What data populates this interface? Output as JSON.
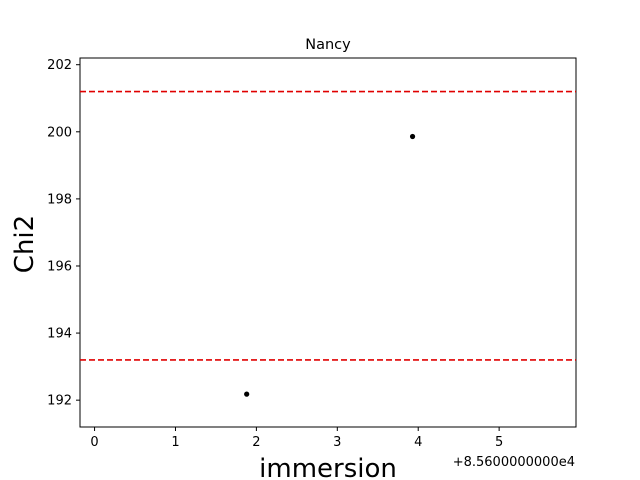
{
  "chart_data": {
    "type": "scatter",
    "title": "Nancy",
    "xlabel": "immersion",
    "ylabel": "Chi2",
    "x_offset_label": "+8.5600000000e4",
    "xlim": [
      -0.18,
      5.95
    ],
    "ylim": [
      191.2,
      202.2
    ],
    "x_ticks": [
      0,
      1,
      2,
      3,
      4,
      5
    ],
    "y_ticks": [
      192,
      194,
      196,
      198,
      200,
      202
    ],
    "grid": false,
    "series": [
      {
        "points": [
          {
            "x": 1.88,
            "y": 192.18
          },
          {
            "x": 3.93,
            "y": 199.86
          }
        ],
        "color": "#000000"
      }
    ],
    "hlines": [
      {
        "y": 201.2,
        "color": "#e00000",
        "style": "dashed"
      },
      {
        "y": 193.2,
        "color": "#e00000",
        "style": "dashed"
      }
    ]
  }
}
